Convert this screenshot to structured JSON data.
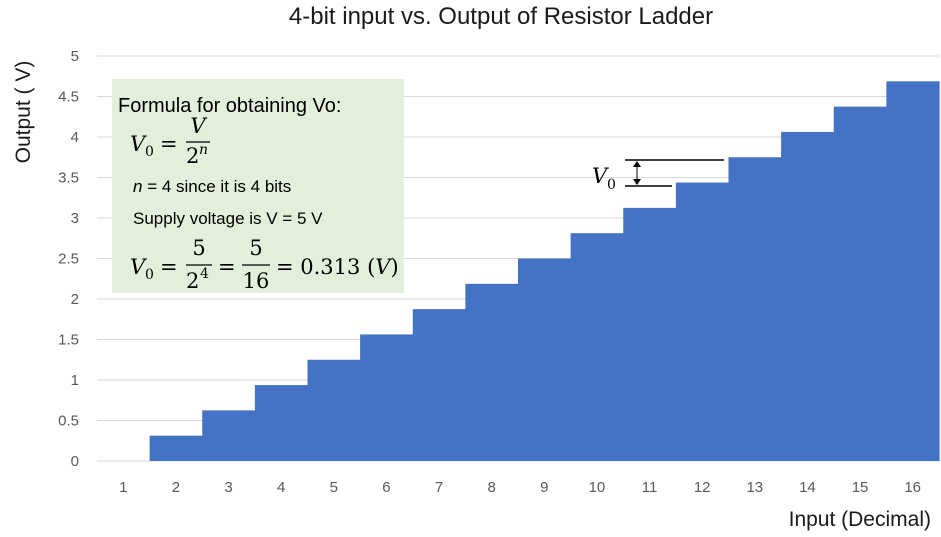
{
  "chart_data": {
    "type": "bar",
    "title": "4-bit input vs. Output of Resistor Ladder",
    "xlabel": "Input (Decimal)",
    "ylabel": "Output ( V)",
    "categories": [
      "1",
      "2",
      "3",
      "4",
      "5",
      "6",
      "7",
      "8",
      "9",
      "10",
      "11",
      "12",
      "13",
      "14",
      "15",
      "16"
    ],
    "values": [
      0,
      0.3125,
      0.625,
      0.9375,
      1.25,
      1.5625,
      1.875,
      2.1875,
      2.5,
      2.8125,
      3.125,
      3.4375,
      3.75,
      4.0625,
      4.375,
      4.6875
    ],
    "ylim": [
      0,
      5
    ],
    "yticks": [
      "0",
      "0.5",
      "1",
      "1.5",
      "2",
      "2.5",
      "3",
      "3.5",
      "4",
      "4.5",
      "5"
    ],
    "grid": true,
    "bar_color": "#4472c4"
  },
  "formula_box": {
    "heading": "Formula for obtaining Vo:",
    "v0_lhs": "V",
    "v0_sub": "0",
    "equals": "=",
    "v_numerator": "V",
    "two": "2",
    "n_exp": "n",
    "n_text_var": "n",
    "n_text_rest": " = 4 since it is 4 bits",
    "supply_text": "Supply voltage is V = 5 V",
    "calc_num1": "5",
    "calc_exp": "4",
    "calc_num2": "5",
    "calc_den2": "16",
    "calc_result": "= 0.313 (",
    "calc_unit": "V",
    "calc_close": ")",
    "background": "#e2efda"
  },
  "annotation": {
    "label": "V",
    "label_sub": "0"
  }
}
